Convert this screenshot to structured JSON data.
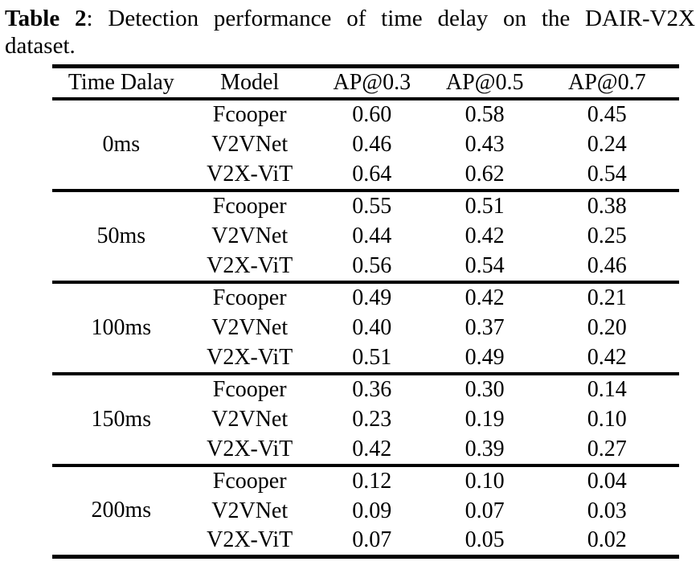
{
  "colors": {
    "background": "#ffffff",
    "text": "#000000",
    "rule": "#000000"
  },
  "caption": {
    "label": "Table 2",
    "line1_rest": ": Detection performance of time delay on the DAIR-V2X",
    "line2": "dataset."
  },
  "table": {
    "headers": {
      "delay": "Time Dalay",
      "model": "Model",
      "ap03": "AP@0.3",
      "ap05": "AP@0.5",
      "ap07": "AP@0.7"
    },
    "groups": [
      {
        "delay": "0ms",
        "rows": [
          {
            "model": "Fcooper",
            "ap03": "0.60",
            "ap05": "0.58",
            "ap07": "0.45"
          },
          {
            "model": "V2VNet",
            "ap03": "0.46",
            "ap05": "0.43",
            "ap07": "0.24"
          },
          {
            "model": "V2X-ViT",
            "ap03": "0.64",
            "ap05": "0.62",
            "ap07": "0.54"
          }
        ]
      },
      {
        "delay": "50ms",
        "rows": [
          {
            "model": "Fcooper",
            "ap03": "0.55",
            "ap05": "0.51",
            "ap07": "0.38"
          },
          {
            "model": "V2VNet",
            "ap03": "0.44",
            "ap05": "0.42",
            "ap07": "0.25"
          },
          {
            "model": "V2X-ViT",
            "ap03": "0.56",
            "ap05": "0.54",
            "ap07": "0.46"
          }
        ]
      },
      {
        "delay": "100ms",
        "rows": [
          {
            "model": "Fcooper",
            "ap03": "0.49",
            "ap05": "0.42",
            "ap07": "0.21"
          },
          {
            "model": "V2VNet",
            "ap03": "0.40",
            "ap05": "0.37",
            "ap07": "0.20"
          },
          {
            "model": "V2X-ViT",
            "ap03": "0.51",
            "ap05": "0.49",
            "ap07": "0.42"
          }
        ]
      },
      {
        "delay": "150ms",
        "rows": [
          {
            "model": "Fcooper",
            "ap03": "0.36",
            "ap05": "0.30",
            "ap07": "0.14"
          },
          {
            "model": "V2VNet",
            "ap03": "0.23",
            "ap05": "0.19",
            "ap07": "0.10"
          },
          {
            "model": "V2X-ViT",
            "ap03": "0.42",
            "ap05": "0.39",
            "ap07": "0.27"
          }
        ]
      },
      {
        "delay": "200ms",
        "rows": [
          {
            "model": "Fcooper",
            "ap03": "0.12",
            "ap05": "0.10",
            "ap07": "0.04"
          },
          {
            "model": "V2VNet",
            "ap03": "0.09",
            "ap05": "0.07",
            "ap07": "0.03"
          },
          {
            "model": "V2X-ViT",
            "ap03": "0.07",
            "ap05": "0.05",
            "ap07": "0.02"
          }
        ]
      }
    ]
  }
}
